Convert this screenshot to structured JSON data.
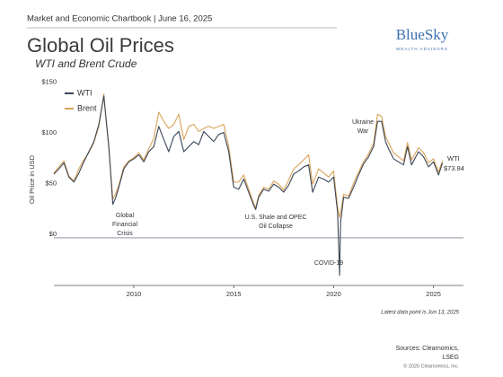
{
  "chart_data": {
    "type": "line",
    "header": "Market and Economic Chartbook | June 16, 2025",
    "title": "Global Oil Prices",
    "subtitle": "WTI and Brent Crude",
    "logo": {
      "name": "BlueSky",
      "tagline": "WEALTH ADVISORS"
    },
    "y_label": "Oil Price in USD",
    "x": [
      2006.0,
      2006.25,
      2006.5,
      2006.75,
      2007.0,
      2007.25,
      2007.5,
      2007.75,
      2008.0,
      2008.25,
      2008.5,
      2008.6,
      2008.75,
      2008.95,
      2009.1,
      2009.25,
      2009.5,
      2009.75,
      2010.0,
      2010.25,
      2010.5,
      2010.75,
      2011.0,
      2011.25,
      2011.5,
      2011.75,
      2012.0,
      2012.25,
      2012.5,
      2012.75,
      2013.0,
      2013.25,
      2013.5,
      2013.75,
      2014.0,
      2014.25,
      2014.5,
      2014.75,
      2015.0,
      2015.25,
      2015.5,
      2015.75,
      2016.0,
      2016.1,
      2016.25,
      2016.5,
      2016.75,
      2017.0,
      2017.25,
      2017.5,
      2017.75,
      2018.0,
      2018.25,
      2018.5,
      2018.75,
      2018.95,
      2019.25,
      2019.5,
      2019.75,
      2020.0,
      2020.2,
      2020.3,
      2020.35,
      2020.5,
      2020.75,
      2021.0,
      2021.25,
      2021.5,
      2021.75,
      2022.0,
      2022.2,
      2022.4,
      2022.6,
      2022.75,
      2023.0,
      2023.25,
      2023.5,
      2023.7,
      2023.9,
      2024.25,
      2024.5,
      2024.75,
      2025.0,
      2025.25,
      2025.45
    ],
    "series": [
      {
        "name": "WTI",
        "color": "#3b4657",
        "end_label": "$73.84",
        "values": [
          63,
          68,
          74,
          60,
          55,
          64,
          75,
          85,
          95,
          112,
          140,
          120,
          90,
          33,
          40,
          50,
          68,
          75,
          78,
          82,
          75,
          85,
          90,
          110,
          97,
          85,
          100,
          105,
          85,
          90,
          95,
          92,
          105,
          100,
          95,
          102,
          104,
          85,
          50,
          48,
          58,
          45,
          32,
          28,
          40,
          48,
          46,
          53,
          50,
          45,
          52,
          63,
          66,
          70,
          72,
          45,
          60,
          58,
          55,
          60,
          25,
          -37,
          15,
          40,
          39,
          50,
          62,
          73,
          80,
          90,
          115,
          115,
          95,
          88,
          78,
          75,
          72,
          90,
          72,
          85,
          80,
          70,
          75,
          62,
          73.84
        ]
      },
      {
        "name": "Brent",
        "color": "#d9a35a",
        "values": [
          64,
          70,
          76,
          61,
          56,
          68,
          77,
          84,
          94,
          110,
          142,
          118,
          88,
          38,
          44,
          52,
          70,
          76,
          79,
          84,
          77,
          88,
          98,
          124,
          115,
          108,
          112,
          122,
          97,
          110,
          112,
          105,
          108,
          110,
          108,
          110,
          112,
          90,
          55,
          55,
          62,
          48,
          34,
          30,
          42,
          50,
          48,
          56,
          53,
          47,
          57,
          68,
          72,
          77,
          82,
          53,
          68,
          64,
          60,
          66,
          30,
          20,
          25,
          43,
          41,
          54,
          65,
          75,
          83,
          93,
          122,
          120,
          100,
          94,
          84,
          80,
          76,
          94,
          77,
          89,
          84,
          74,
          78,
          65,
          76
        ]
      }
    ],
    "xlim": [
      2006,
      2026.5
    ],
    "xticks": [
      2010,
      2015,
      2020,
      2025
    ],
    "ylim": [
      -47,
      155
    ],
    "yticks": [
      {
        "value": 0,
        "label": "$0"
      },
      {
        "value": 50,
        "label": "$50"
      },
      {
        "value": 100,
        "label": "$100"
      },
      {
        "value": 150,
        "label": "$150"
      }
    ],
    "legend": "top-left",
    "annotations": [
      {
        "lines": [
          "Global",
          "Financial",
          "Crisis"
        ]
      },
      {
        "lines": [
          "U.S. Shale and OPEC",
          "Oil Collapse"
        ]
      },
      {
        "lines": [
          "COVID-19"
        ]
      },
      {
        "lines": [
          "Ukraine",
          "War"
        ]
      }
    ],
    "note": "Latest data point is Jun 13, 2025",
    "sources": [
      "Sources: Clearnomics,",
      "LSEG"
    ],
    "copyright": "© 2025 Clearnomics, Inc."
  }
}
